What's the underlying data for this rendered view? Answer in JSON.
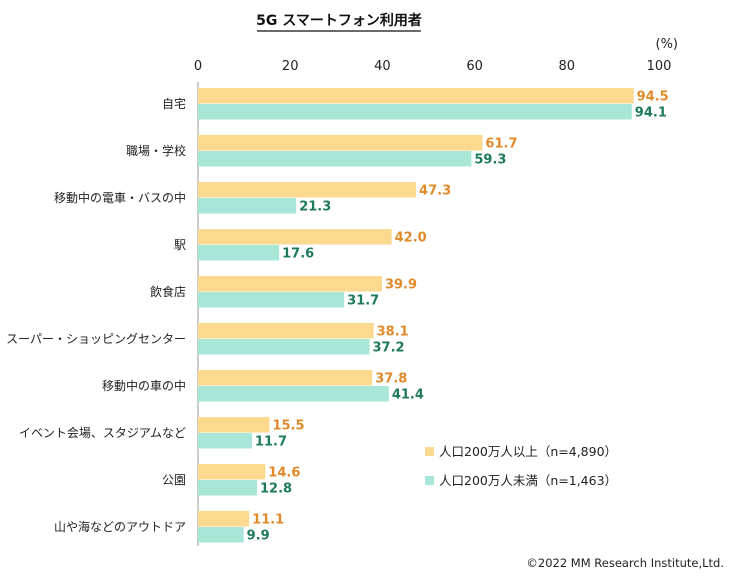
{
  "chart_data": {
    "type": "bar",
    "orientation": "horizontal",
    "title": "5G スマートフォン利用者",
    "unit_label": "(%)",
    "xlim": [
      0,
      100
    ],
    "ticks": [
      0,
      20,
      40,
      60,
      80,
      100
    ],
    "grid": false,
    "legend_position": "bottom-right",
    "categories": [
      "自宅",
      "職場・学校",
      "移動中の電車・バスの中",
      "駅",
      "飲食店",
      "スーパー・ショッピングセンター",
      "移動中の車の中",
      "イベント会場、スタジアムなど",
      "公園",
      "山や海などのアウトドア"
    ],
    "series": [
      {
        "name": "人口200万人以上（n=4,890）",
        "color": "#fbd98e",
        "label_color": "#e08a2a",
        "values": [
          94.5,
          61.7,
          47.3,
          42.0,
          39.9,
          38.1,
          37.8,
          15.5,
          14.6,
          11.1
        ]
      },
      {
        "name": "人口200万人未満（n=1,463）",
        "color": "#a8e6d8",
        "label_color": "#1d7a5e",
        "values": [
          94.1,
          59.3,
          21.3,
          17.6,
          31.7,
          37.2,
          41.4,
          11.7,
          12.8,
          9.9
        ]
      }
    ]
  },
  "credit": "©2022 MM Research Institute,Ltd."
}
